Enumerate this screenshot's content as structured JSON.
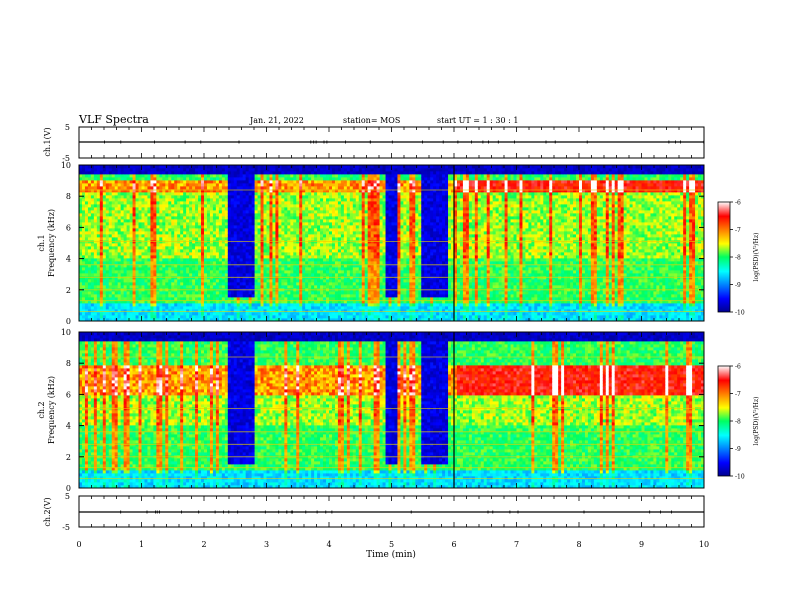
{
  "header": {
    "title": "VLF Spectra",
    "date": "Jan. 21, 2022",
    "station": "station= MOS",
    "start": "start  UT =  1 : 30 : 1"
  },
  "chart_data": [
    {
      "type": "line",
      "name": "ch1-voltage",
      "ylabel": "ch.1(V)",
      "ylim": [
        -5,
        5
      ],
      "yticks": [
        "5",
        "-5"
      ],
      "x": [
        0,
        10
      ],
      "values": [
        0,
        0
      ]
    },
    {
      "type": "heatmap",
      "name": "ch1-spectrogram",
      "ylabel_line1": "ch.1",
      "ylabel_line2": "Frequency (kHz)",
      "ylim": [
        0,
        10
      ],
      "yticks": [
        "0",
        "2",
        "4",
        "6",
        "8",
        "10"
      ],
      "xlim": [
        0,
        10
      ],
      "colorbar": {
        "label": "log(PSD)(V²/Hz)",
        "range": [
          -10,
          -6
        ],
        "ticks": [
          "-6",
          "-7",
          "-8",
          "-9",
          "-10"
        ]
      },
      "quiet_intervals_min": [
        [
          2.4,
          2.8
        ],
        [
          4.9,
          5.1
        ],
        [
          5.5,
          5.9
        ]
      ],
      "strong_band_khz": [
        8.2,
        9.1
      ]
    },
    {
      "type": "heatmap",
      "name": "ch2-spectrogram",
      "ylabel_line1": "ch.2",
      "ylabel_line2": "Frequency (kHz)",
      "ylim": [
        0,
        10
      ],
      "yticks": [
        "0",
        "2",
        "4",
        "6",
        "8",
        "10"
      ],
      "xlim": [
        0,
        10
      ],
      "colorbar": {
        "label": "log(PSD)(V²/Hz)",
        "range": [
          -10,
          -6
        ],
        "ticks": [
          "-6",
          "-7",
          "-8",
          "-9",
          "-10"
        ]
      },
      "quiet_intervals_min": [
        [
          2.4,
          2.8
        ],
        [
          4.9,
          5.1
        ],
        [
          5.5,
          5.9
        ]
      ],
      "strong_band_khz": [
        6.0,
        7.8
      ]
    },
    {
      "type": "line",
      "name": "ch2-voltage",
      "ylabel": "ch.2(V)",
      "ylim": [
        -5,
        5
      ],
      "yticks": [
        "5",
        "-5"
      ],
      "x": [
        0,
        10
      ],
      "values": [
        0,
        0
      ]
    }
  ],
  "xaxis": {
    "label": "Time (min)",
    "ticks": [
      "0",
      "1",
      "2",
      "3",
      "4",
      "5",
      "6",
      "7",
      "8",
      "9",
      "10"
    ],
    "range": [
      0,
      10
    ]
  }
}
